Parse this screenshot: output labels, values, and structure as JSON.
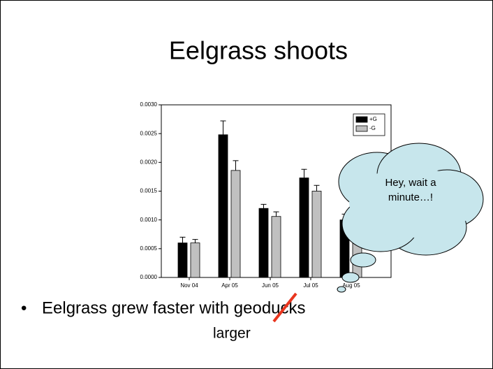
{
  "slide": {
    "title": "Eelgrass shoots",
    "bullet": "Eelgrass grew faster with geoducks",
    "correction": "larger",
    "callout": [
      "Hey, wait a",
      "minute…!"
    ]
  },
  "chart_data": {
    "type": "bar",
    "categories": [
      "Nov 04",
      "Apr 05",
      "Jun 05",
      "Jul 05",
      "Aug 05"
    ],
    "series": [
      {
        "name": "+G",
        "color": "#000000",
        "values": [
          0.0006,
          0.00248,
          0.0012,
          0.00173,
          0.001
        ],
        "errors": [
          0.0001,
          0.00024,
          7e-05,
          0.00015,
          0.0001
        ]
      },
      {
        "name": "-G",
        "color": "#c0c0c0",
        "values": [
          0.0006,
          0.00186,
          0.00106,
          0.0015,
          0.0008
        ],
        "errors": [
          6e-05,
          0.00017,
          8e-05,
          0.0001,
          0.0001
        ]
      }
    ],
    "ylim": [
      0,
      0.003
    ],
    "yticks": [
      {
        "value": 0,
        "label": "0.0000"
      },
      {
        "value": 0.0005,
        "label": "0.0005"
      },
      {
        "value": 0.001,
        "label": "0.0010"
      },
      {
        "value": 0.0015,
        "label": "0.0015"
      },
      {
        "value": 0.002,
        "label": "0.0020"
      },
      {
        "value": 0.0025,
        "label": "0.0025"
      },
      {
        "value": 0.003,
        "label": "0.0030"
      }
    ],
    "legend": "top-right"
  }
}
